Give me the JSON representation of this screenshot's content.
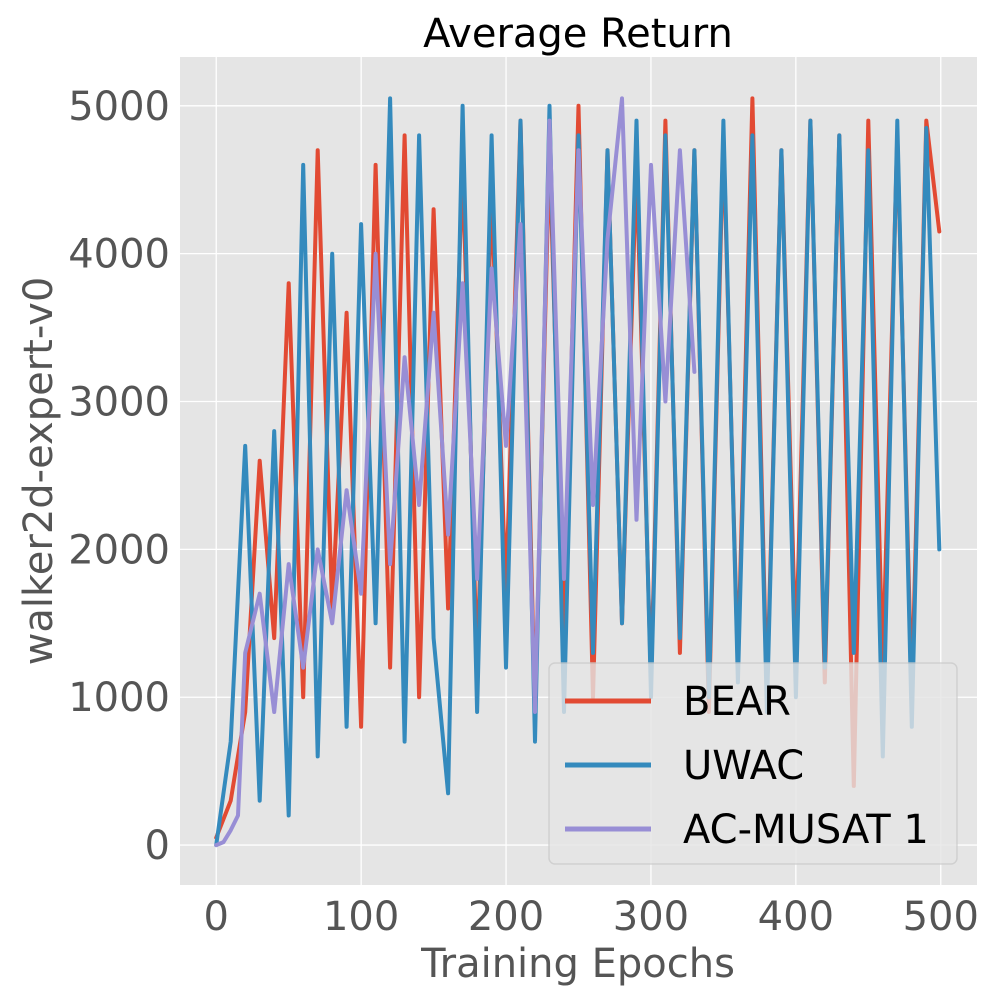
{
  "chart_data": {
    "type": "line",
    "title": "Average Return",
    "xlabel": "Training Epochs",
    "ylabel": "walker2d-expert-v0",
    "xlim": [
      -25,
      525
    ],
    "ylim": [
      -270,
      5330
    ],
    "xticks": [
      0,
      100,
      200,
      300,
      400,
      500
    ],
    "yticks": [
      0,
      1000,
      2000,
      3000,
      4000,
      5000
    ],
    "xtick_labels": [
      "0",
      "100",
      "200",
      "300",
      "400",
      "500"
    ],
    "ytick_labels": [
      "0",
      "1000",
      "2000",
      "3000",
      "4000",
      "5000"
    ],
    "grid": true,
    "legend_position": "lower-right",
    "background": "#e5e5e5",
    "series": [
      {
        "name": "BEAR",
        "color": "#e24a33",
        "x": [
          0,
          10,
          20,
          30,
          40,
          50,
          60,
          70,
          80,
          90,
          100,
          110,
          120,
          130,
          140,
          150,
          160,
          170,
          180,
          190,
          200,
          210,
          220,
          230,
          240,
          250,
          260,
          270,
          280,
          290,
          300,
          310,
          320,
          330,
          340,
          350,
          360,
          370,
          380,
          390,
          400,
          410,
          420,
          430,
          440,
          450,
          460,
          470,
          480,
          490,
          499
        ],
        "y": [
          50,
          300,
          900,
          2600,
          1400,
          3800,
          1000,
          4700,
          1600,
          3600,
          800,
          4600,
          1200,
          4800,
          1000,
          4300,
          1600,
          4600,
          1200,
          4400,
          1700,
          4900,
          900,
          4700,
          1400,
          5000,
          1000,
          4700,
          1500,
          4600,
          1100,
          4900,
          1300,
          4700,
          900,
          4800,
          1200,
          5050,
          1000,
          4700,
          1300,
          4900,
          1100,
          4800,
          400,
          4900,
          1200,
          4800,
          1000,
          4900,
          4150
        ]
      },
      {
        "name": "UWAC",
        "color": "#348abd",
        "x": [
          0,
          10,
          20,
          30,
          40,
          50,
          60,
          70,
          80,
          90,
          100,
          110,
          120,
          130,
          140,
          150,
          160,
          170,
          180,
          190,
          200,
          210,
          220,
          230,
          240,
          250,
          260,
          270,
          280,
          290,
          300,
          310,
          320,
          330,
          340,
          350,
          360,
          370,
          380,
          390,
          400,
          410,
          420,
          430,
          440,
          450,
          460,
          470,
          480,
          490,
          499
        ],
        "y": [
          0,
          700,
          2700,
          300,
          2800,
          200,
          4600,
          600,
          4000,
          800,
          4200,
          1500,
          5050,
          700,
          4800,
          1400,
          350,
          5000,
          900,
          4800,
          1200,
          4900,
          700,
          5000,
          900,
          4800,
          1300,
          4700,
          1500,
          4900,
          1000,
          4800,
          1400,
          4700,
          1000,
          4900,
          1100,
          4800,
          900,
          4700,
          1000,
          4900,
          1200,
          4800,
          1300,
          4700,
          600,
          4900,
          800,
          4850,
          2000
        ]
      },
      {
        "name": "AC-MUSAT 1",
        "color": "#988ed5",
        "x": [
          0,
          5,
          10,
          15,
          20,
          30,
          40,
          50,
          60,
          70,
          80,
          90,
          100,
          110,
          120,
          130,
          140,
          150,
          160,
          170,
          180,
          190,
          200,
          210,
          220,
          230,
          240,
          250,
          260,
          270,
          280,
          290,
          300,
          310,
          320,
          330
        ],
        "y": [
          0,
          20,
          100,
          200,
          1300,
          1700,
          900,
          1900,
          1200,
          2000,
          1500,
          2400,
          1700,
          4000,
          1900,
          3300,
          2300,
          3600,
          2100,
          3800,
          1800,
          3900,
          2700,
          4200,
          900,
          4900,
          1800,
          4700,
          2300,
          4100,
          5050,
          2200,
          4600,
          3000,
          4700,
          3200
        ]
      }
    ]
  }
}
